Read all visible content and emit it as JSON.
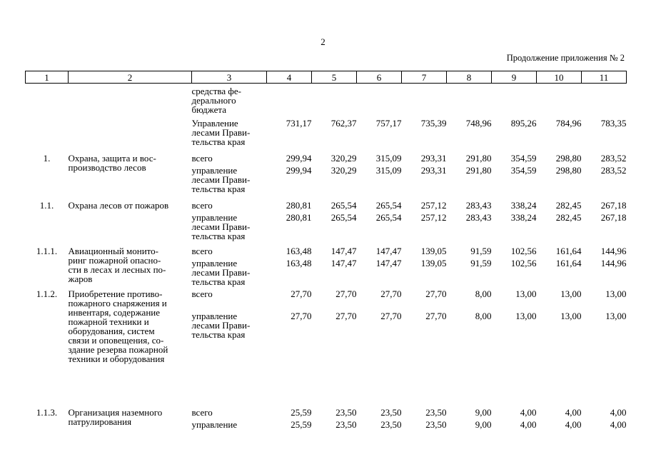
{
  "page": {
    "number": "2",
    "continuation_label": "Продолжение приложения № 2"
  },
  "table": {
    "columns": [
      "1",
      "2",
      "3",
      "4",
      "5",
      "6",
      "7",
      "8",
      "9",
      "10",
      "11"
    ],
    "groups": [
      {
        "num": "",
        "name": "",
        "subrows": [
          {
            "label": "средства фе-\nдерального\nбюджета",
            "values": [
              "",
              "",
              "",
              "",
              "",
              "",
              "",
              ""
            ]
          }
        ]
      },
      {
        "num": "",
        "name": "",
        "subrows": [
          {
            "label": "Управление\nлесами Прави-\nтельства края",
            "values": [
              "731,17",
              "762,37",
              "757,17",
              "735,39",
              "748,96",
              "895,26",
              "784,96",
              "783,35"
            ]
          }
        ]
      },
      {
        "num": "1.",
        "name": "Охрана, защита и вос-\nпроизводство лесов",
        "subrows": [
          {
            "label": "всего",
            "values": [
              "299,94",
              "320,29",
              "315,09",
              "293,31",
              "291,80",
              "354,59",
              "298,80",
              "283,52"
            ]
          },
          {
            "label": "управление\nлесами Прави-\nтельства края",
            "values": [
              "299,94",
              "320,29",
              "315,09",
              "293,31",
              "291,80",
              "354,59",
              "298,80",
              "283,52"
            ]
          }
        ]
      },
      {
        "num": "1.1.",
        "name": "Охрана лесов от пожаров",
        "subrows": [
          {
            "label": "всего",
            "values": [
              "280,81",
              "265,54",
              "265,54",
              "257,12",
              "283,43",
              "338,24",
              "282,45",
              "267,18"
            ]
          },
          {
            "label": "управление\nлесами Прави-\nтельства края",
            "values": [
              "280,81",
              "265,54",
              "265,54",
              "257,12",
              "283,43",
              "338,24",
              "282,45",
              "267,18"
            ]
          }
        ]
      },
      {
        "num": "1.1.1.",
        "name": "Авиационный монито-\nринг пожарной опасно-\nсти в лесах и лесных по-\nжаров",
        "subrows": [
          {
            "label": "всего",
            "values": [
              "163,48",
              "147,47",
              "147,47",
              "139,05",
              "91,59",
              "102,56",
              "161,64",
              "144,96"
            ]
          },
          {
            "label": "управление\nлесами Прави-\nтельства края",
            "values": [
              "163,48",
              "147,47",
              "147,47",
              "139,05",
              "91,59",
              "102,56",
              "161,64",
              "144,96"
            ]
          }
        ]
      },
      {
        "num": "1.1.2.",
        "name": "Приобретение противо-\nпожарного снаряжения и\nинвентаря, содержание\nпожарной техники и\nоборудования, систем\nсвязи и оповещения, со-\nздание резерва пожарной\nтехники и оборудования",
        "subrows": [
          {
            "label": "всего",
            "values": [
              "27,70",
              "27,70",
              "27,70",
              "27,70",
              "8,00",
              "13,00",
              "13,00",
              "13,00"
            ]
          },
          {
            "label": "управление\nлесами Прави-\nтельства края",
            "values": [
              "27,70",
              "27,70",
              "27,70",
              "27,70",
              "8,00",
              "13,00",
              "13,00",
              "13,00"
            ]
          }
        ]
      },
      {
        "num": "1.1.3.",
        "name": "Организация наземного\nпатрулирования",
        "subrows": [
          {
            "label": "всего",
            "values": [
              "25,59",
              "23,50",
              "23,50",
              "23,50",
              "9,00",
              "4,00",
              "4,00",
              "4,00"
            ]
          },
          {
            "label": "управление",
            "values": [
              "25,59",
              "23,50",
              "23,50",
              "23,50",
              "9,00",
              "4,00",
              "4,00",
              "4,00"
            ]
          }
        ]
      }
    ]
  }
}
